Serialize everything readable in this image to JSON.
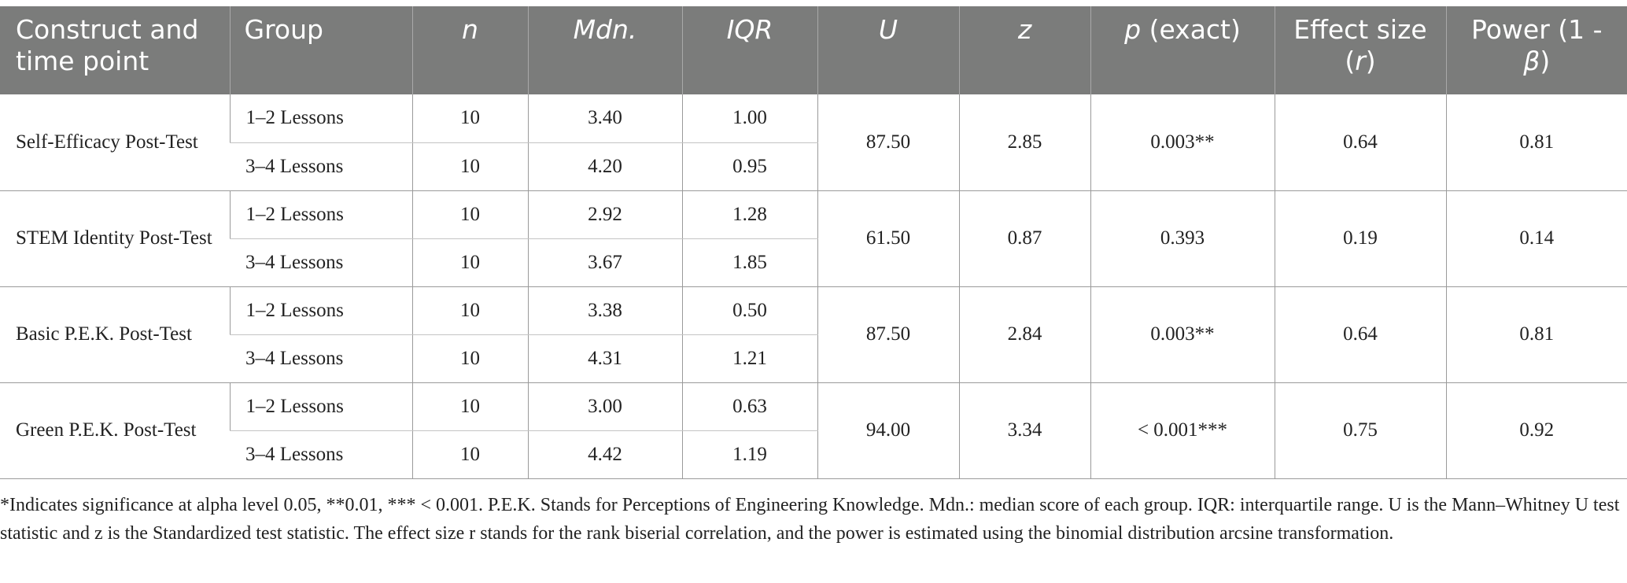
{
  "table": {
    "headers": {
      "construct": "Construct and time point",
      "group": "Group",
      "n": "n",
      "mdn": "Mdn.",
      "iqr": "IQR",
      "u": "U",
      "z": "z",
      "p_italic": "p",
      "p_rest": " (exact)",
      "effect_line1": "Effect size",
      "effect_open": "(",
      "effect_r": "r",
      "effect_close": ")",
      "power_line1": "Power (1 -",
      "power_beta": "β",
      "power_close": ")"
    },
    "rows": [
      {
        "construct": "Self-Efficacy Post-Test",
        "U": "87.50",
        "z": "2.85",
        "p": "0.003**",
        "r": "0.64",
        "power": "0.81",
        "groups": [
          {
            "group": "1–2 Lessons",
            "n": "10",
            "mdn": "3.40",
            "iqr": "1.00"
          },
          {
            "group": "3–4 Lessons",
            "n": "10",
            "mdn": "4.20",
            "iqr": "0.95"
          }
        ]
      },
      {
        "construct": "STEM Identity Post-Test",
        "U": "61.50",
        "z": "0.87",
        "p": "0.393",
        "r": "0.19",
        "power": "0.14",
        "groups": [
          {
            "group": "1–2 Lessons",
            "n": "10",
            "mdn": "2.92",
            "iqr": "1.28"
          },
          {
            "group": "3–4 Lessons",
            "n": "10",
            "mdn": "3.67",
            "iqr": "1.85"
          }
        ]
      },
      {
        "construct": "Basic P.E.K. Post-Test",
        "U": "87.50",
        "z": "2.84",
        "p": "0.003**",
        "r": "0.64",
        "power": "0.81",
        "groups": [
          {
            "group": "1–2 Lessons",
            "n": "10",
            "mdn": "3.38",
            "iqr": "0.50"
          },
          {
            "group": "3–4 Lessons",
            "n": "10",
            "mdn": "4.31",
            "iqr": "1.21"
          }
        ]
      },
      {
        "construct": "Green P.E.K. Post-Test",
        "U": "94.00",
        "z": "3.34",
        "p": "< 0.001***",
        "r": "0.75",
        "power": "0.92",
        "groups": [
          {
            "group": "1–2 Lessons",
            "n": "10",
            "mdn": "3.00",
            "iqr": "0.63"
          },
          {
            "group": "3–4 Lessons",
            "n": "10",
            "mdn": "4.42",
            "iqr": "1.19"
          }
        ]
      }
    ]
  },
  "footnote": "*Indicates significance at alpha level 0.05, **0.01, *** < 0.001. P.E.K. Stands for Perceptions of Engineering Knowledge. Mdn.: median score of each group. IQR: interquartile range. U is the Mann–Whitney U test statistic and z is the Standardized test statistic. The effect size r stands for the rank biserial correlation, and the power is estimated using the binomial distribution arcsine transformation."
}
